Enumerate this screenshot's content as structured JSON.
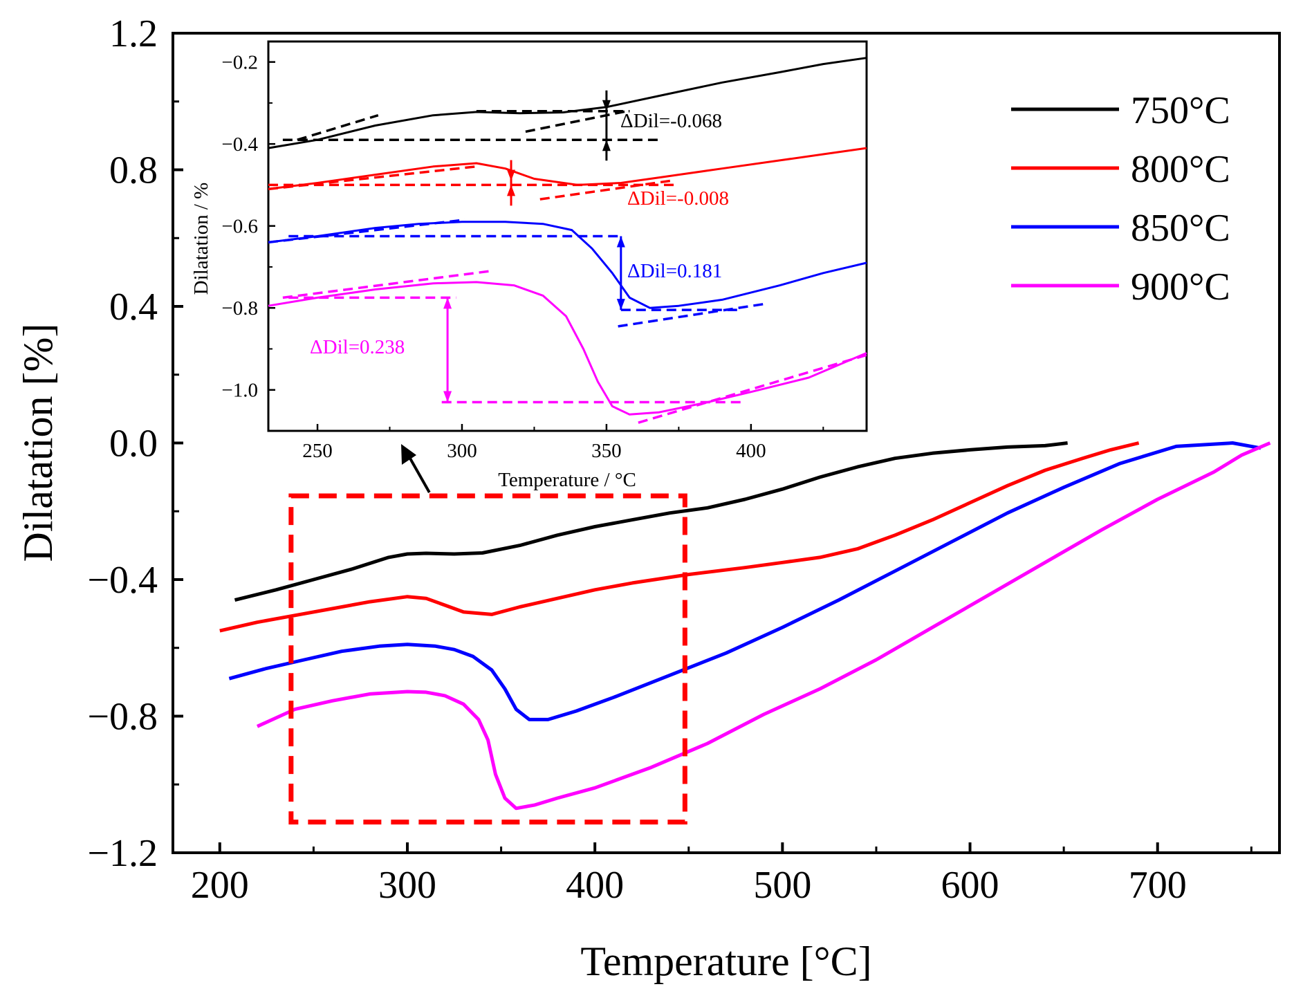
{
  "chart_data": {
    "type": "line",
    "main": {
      "xlabel": "Temperature [°C]",
      "ylabel": "Dilatation [%]",
      "xlim": [
        175,
        765
      ],
      "ylim": [
        -1.2,
        1.2
      ],
      "xticks": [
        200,
        300,
        400,
        500,
        600,
        700
      ],
      "xtick_labels": [
        "200",
        "300",
        "400",
        "500",
        "600",
        "700"
      ],
      "yticks": [
        -1.2,
        -0.8,
        -0.4,
        0.0,
        0.4,
        0.8,
        1.2
      ],
      "ytick_labels": [
        "−1.2",
        "−0.8",
        "−0.4",
        "0.0",
        "0.4",
        "0.8",
        "1.2"
      ],
      "legend_position": "top-right",
      "series": [
        {
          "name": "750°C",
          "color": "#000000",
          "points": [
            [
              208,
              -0.46
            ],
            [
              230,
              -0.43
            ],
            [
              250,
              -0.4
            ],
            [
              270,
              -0.37
            ],
            [
              290,
              -0.335
            ],
            [
              300,
              -0.325
            ],
            [
              310,
              -0.323
            ],
            [
              325,
              -0.325
            ],
            [
              340,
              -0.322
            ],
            [
              360,
              -0.3
            ],
            [
              380,
              -0.27
            ],
            [
              400,
              -0.245
            ],
            [
              420,
              -0.225
            ],
            [
              440,
              -0.205
            ],
            [
              460,
              -0.19
            ],
            [
              480,
              -0.165
            ],
            [
              500,
              -0.135
            ],
            [
              520,
              -0.1
            ],
            [
              540,
              -0.07
            ],
            [
              560,
              -0.045
            ],
            [
              580,
              -0.03
            ],
            [
              600,
              -0.02
            ],
            [
              620,
              -0.012
            ],
            [
              640,
              -0.008
            ],
            [
              652,
              0.0
            ]
          ]
        },
        {
          "name": "800°C",
          "color": "#ff0000",
          "points": [
            [
              200,
              -0.55
            ],
            [
              220,
              -0.525
            ],
            [
              240,
              -0.505
            ],
            [
              260,
              -0.485
            ],
            [
              280,
              -0.465
            ],
            [
              300,
              -0.45
            ],
            [
              310,
              -0.455
            ],
            [
              320,
              -0.475
            ],
            [
              330,
              -0.495
            ],
            [
              345,
              -0.502
            ],
            [
              360,
              -0.48
            ],
            [
              380,
              -0.455
            ],
            [
              400,
              -0.43
            ],
            [
              420,
              -0.41
            ],
            [
              450,
              -0.385
            ],
            [
              480,
              -0.365
            ],
            [
              500,
              -0.35
            ],
            [
              520,
              -0.335
            ],
            [
              540,
              -0.31
            ],
            [
              560,
              -0.27
            ],
            [
              580,
              -0.225
            ],
            [
              600,
              -0.175
            ],
            [
              620,
              -0.125
            ],
            [
              640,
              -0.08
            ],
            [
              660,
              -0.045
            ],
            [
              675,
              -0.02
            ],
            [
              690,
              0.0
            ]
          ]
        },
        {
          "name": "850°C",
          "color": "#0000ff",
          "points": [
            [
              205,
              -0.69
            ],
            [
              225,
              -0.66
            ],
            [
              245,
              -0.635
            ],
            [
              265,
              -0.61
            ],
            [
              285,
              -0.595
            ],
            [
              300,
              -0.59
            ],
            [
              315,
              -0.595
            ],
            [
              325,
              -0.605
            ],
            [
              335,
              -0.625
            ],
            [
              345,
              -0.665
            ],
            [
              352,
              -0.72
            ],
            [
              358,
              -0.78
            ],
            [
              365,
              -0.81
            ],
            [
              375,
              -0.81
            ],
            [
              390,
              -0.785
            ],
            [
              410,
              -0.745
            ],
            [
              440,
              -0.68
            ],
            [
              470,
              -0.615
            ],
            [
              500,
              -0.54
            ],
            [
              530,
              -0.46
            ],
            [
              560,
              -0.375
            ],
            [
              590,
              -0.29
            ],
            [
              620,
              -0.205
            ],
            [
              650,
              -0.13
            ],
            [
              680,
              -0.06
            ],
            [
              710,
              -0.01
            ],
            [
              740,
              0.0
            ],
            [
              755,
              -0.015
            ]
          ]
        },
        {
          "name": "900°C",
          "color": "#ff00ff",
          "points": [
            [
              220,
              -0.83
            ],
            [
              240,
              -0.78
            ],
            [
              260,
              -0.755
            ],
            [
              280,
              -0.735
            ],
            [
              300,
              -0.728
            ],
            [
              310,
              -0.73
            ],
            [
              320,
              -0.74
            ],
            [
              330,
              -0.765
            ],
            [
              338,
              -0.81
            ],
            [
              343,
              -0.87
            ],
            [
              347,
              -0.97
            ],
            [
              352,
              -1.04
            ],
            [
              358,
              -1.07
            ],
            [
              368,
              -1.06
            ],
            [
              380,
              -1.04
            ],
            [
              400,
              -1.01
            ],
            [
              430,
              -0.95
            ],
            [
              460,
              -0.88
            ],
            [
              490,
              -0.795
            ],
            [
              520,
              -0.72
            ],
            [
              550,
              -0.635
            ],
            [
              580,
              -0.54
            ],
            [
              610,
              -0.445
            ],
            [
              640,
              -0.35
            ],
            [
              670,
              -0.255
            ],
            [
              700,
              -0.165
            ],
            [
              730,
              -0.085
            ],
            [
              745,
              -0.035
            ],
            [
              760,
              0.0
            ]
          ]
        }
      ]
    },
    "highlight_box": {
      "x_range": [
        238,
        448
      ],
      "y_range": [
        -1.11,
        -0.155
      ],
      "color": "#ff0000"
    },
    "inset": {
      "xlabel": "Temperature / °C",
      "ylabel": "Dilatation / %",
      "xlim": [
        233,
        440
      ],
      "ylim": [
        -1.1,
        -0.15
      ],
      "xticks": [
        250,
        300,
        350,
        400
      ],
      "xtick_labels": [
        "250",
        "300",
        "350",
        "400"
      ],
      "yticks": [
        -1.0,
        -0.8,
        -0.6,
        -0.4,
        -0.2
      ],
      "ytick_labels": [
        "−1.0",
        "−0.8",
        "−0.6",
        "−0.4",
        "−0.2"
      ],
      "series": [
        {
          "name": "750°C",
          "color": "#000000",
          "points": [
            [
              233,
              -0.41
            ],
            [
              250,
              -0.39
            ],
            [
              270,
              -0.355
            ],
            [
              290,
              -0.33
            ],
            [
              305,
              -0.322
            ],
            [
              320,
              -0.325
            ],
            [
              335,
              -0.323
            ],
            [
              350,
              -0.31
            ],
            [
              370,
              -0.28
            ],
            [
              390,
              -0.25
            ],
            [
              410,
              -0.225
            ],
            [
              425,
              -0.205
            ],
            [
              440,
              -0.19
            ]
          ]
        },
        {
          "name": "800°C",
          "color": "#ff0000",
          "points": [
            [
              233,
              -0.51
            ],
            [
              250,
              -0.495
            ],
            [
              270,
              -0.475
            ],
            [
              290,
              -0.455
            ],
            [
              305,
              -0.447
            ],
            [
              315,
              -0.46
            ],
            [
              325,
              -0.485
            ],
            [
              340,
              -0.5
            ],
            [
              355,
              -0.495
            ],
            [
              370,
              -0.48
            ],
            [
              390,
              -0.46
            ],
            [
              410,
              -0.44
            ],
            [
              425,
              -0.425
            ],
            [
              440,
              -0.41
            ]
          ]
        },
        {
          "name": "850°C",
          "color": "#0000ff",
          "points": [
            [
              233,
              -0.64
            ],
            [
              250,
              -0.625
            ],
            [
              270,
              -0.605
            ],
            [
              285,
              -0.595
            ],
            [
              300,
              -0.59
            ],
            [
              315,
              -0.59
            ],
            [
              328,
              -0.595
            ],
            [
              338,
              -0.61
            ],
            [
              345,
              -0.655
            ],
            [
              352,
              -0.715
            ],
            [
              358,
              -0.775
            ],
            [
              365,
              -0.8
            ],
            [
              375,
              -0.795
            ],
            [
              390,
              -0.78
            ],
            [
              410,
              -0.745
            ],
            [
              425,
              -0.715
            ],
            [
              440,
              -0.69
            ]
          ]
        },
        {
          "name": "900°C",
          "color": "#ff00ff",
          "points": [
            [
              233,
              -0.795
            ],
            [
              250,
              -0.775
            ],
            [
              270,
              -0.755
            ],
            [
              290,
              -0.74
            ],
            [
              305,
              -0.737
            ],
            [
              318,
              -0.745
            ],
            [
              328,
              -0.77
            ],
            [
              336,
              -0.82
            ],
            [
              342,
              -0.9
            ],
            [
              347,
              -0.98
            ],
            [
              352,
              -1.04
            ],
            [
              358,
              -1.06
            ],
            [
              368,
              -1.055
            ],
            [
              385,
              -1.03
            ],
            [
              400,
              -1.005
            ],
            [
              420,
              -0.97
            ],
            [
              440,
              -0.91
            ]
          ]
        }
      ],
      "annotations": [
        {
          "text": "ΔDil=-0.068",
          "color": "#000000",
          "value": -0.068
        },
        {
          "text": "ΔDil=-0.008",
          "color": "#ff0000",
          "value": -0.008
        },
        {
          "text": "ΔDil=0.181",
          "color": "#0000ff",
          "value": 0.181
        },
        {
          "text": "ΔDil=0.238",
          "color": "#ff00ff",
          "value": 0.238
        }
      ]
    }
  }
}
